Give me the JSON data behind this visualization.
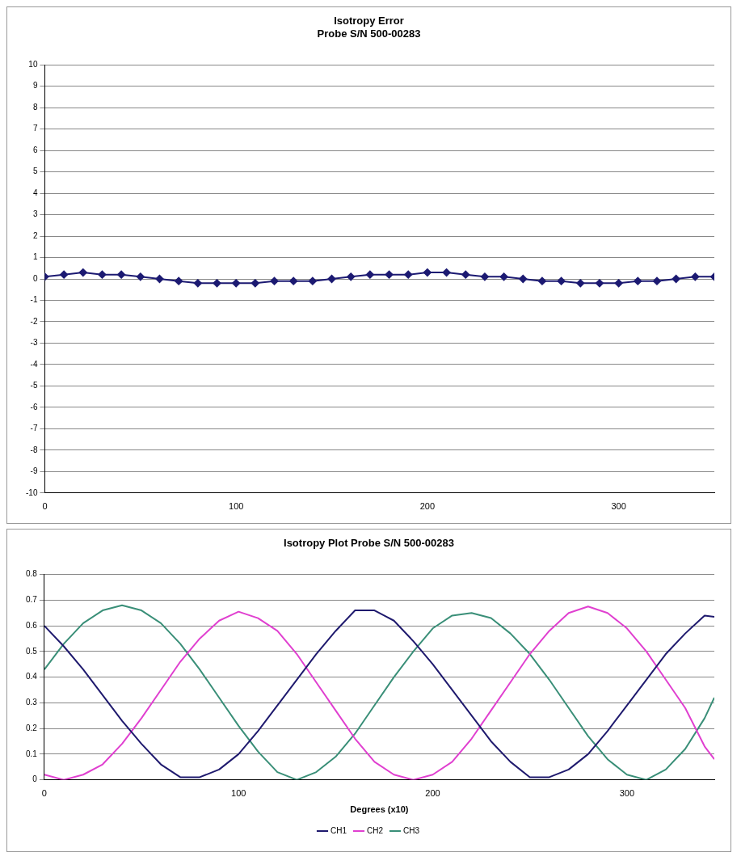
{
  "chart_data": [
    {
      "type": "line",
      "title": "Isotropy Error\nProbe S/N 500-00283",
      "x": [
        0,
        10,
        20,
        30,
        40,
        50,
        60,
        70,
        80,
        90,
        100,
        110,
        120,
        130,
        140,
        150,
        160,
        170,
        180,
        190,
        200,
        210,
        220,
        230,
        240,
        250,
        260,
        270,
        280,
        290,
        300,
        310,
        320,
        330,
        340,
        350
      ],
      "series": [
        {
          "color": "#1c1a72",
          "values": [
            0.1,
            0.2,
            0.3,
            0.2,
            0.2,
            0.1,
            0.0,
            -0.1,
            -0.2,
            -0.2,
            -0.2,
            -0.2,
            -0.1,
            -0.1,
            -0.1,
            0.0,
            0.1,
            0.2,
            0.2,
            0.2,
            0.3,
            0.3,
            0.2,
            0.1,
            0.1,
            0.0,
            -0.1,
            -0.1,
            -0.2,
            -0.2,
            -0.2,
            -0.1,
            -0.1,
            0.0,
            0.1,
            0.1
          ]
        }
      ],
      "xlim": [
        0,
        350
      ],
      "xticks": [
        0,
        100,
        200,
        300
      ],
      "ylim": [
        -10,
        10
      ],
      "yticks": [
        -10,
        -9,
        -8,
        -7,
        -6,
        -5,
        -4,
        -3,
        -2,
        -1,
        0,
        1,
        2,
        3,
        4,
        5,
        6,
        7,
        8,
        9,
        10
      ],
      "grid": "y",
      "legend": false,
      "marker": "diamond",
      "line_style": "solid"
    },
    {
      "type": "line",
      "title": "Isotropy Plot Probe S/N 500-00283",
      "xlabel": "Degrees (x10)",
      "x": [
        0,
        10,
        20,
        30,
        40,
        50,
        60,
        70,
        80,
        90,
        100,
        110,
        120,
        130,
        140,
        150,
        160,
        170,
        180,
        190,
        200,
        210,
        220,
        230,
        240,
        250,
        260,
        270,
        280,
        290,
        300,
        310,
        320,
        330,
        340,
        345
      ],
      "series": [
        {
          "name": "CH1",
          "color": "#1f1a6e",
          "values": [
            0.6,
            0.52,
            0.43,
            0.33,
            0.23,
            0.14,
            0.06,
            0.01,
            0.01,
            0.04,
            0.1,
            0.19,
            0.29,
            0.39,
            0.49,
            0.58,
            0.66,
            0.66,
            0.62,
            0.54,
            0.45,
            0.35,
            0.25,
            0.15,
            0.07,
            0.01,
            0.01,
            0.04,
            0.1,
            0.19,
            0.29,
            0.39,
            0.49,
            0.57,
            0.64,
            0.635
          ]
        },
        {
          "name": "CH2",
          "color": "#e040d0",
          "values": [
            0.02,
            0.0,
            0.02,
            0.06,
            0.14,
            0.24,
            0.35,
            0.46,
            0.55,
            0.62,
            0.655,
            0.63,
            0.58,
            0.49,
            0.38,
            0.27,
            0.16,
            0.07,
            0.02,
            0.0,
            0.02,
            0.07,
            0.16,
            0.27,
            0.38,
            0.49,
            0.58,
            0.65,
            0.675,
            0.65,
            0.59,
            0.5,
            0.39,
            0.28,
            0.13,
            0.08
          ]
        },
        {
          "name": "CH3",
          "color": "#3a8f78",
          "values": [
            0.43,
            0.53,
            0.61,
            0.66,
            0.68,
            0.66,
            0.61,
            0.53,
            0.43,
            0.32,
            0.21,
            0.11,
            0.03,
            0.0,
            0.03,
            0.09,
            0.18,
            0.29,
            0.4,
            0.5,
            0.59,
            0.64,
            0.65,
            0.63,
            0.57,
            0.49,
            0.39,
            0.28,
            0.17,
            0.08,
            0.02,
            0.0,
            0.04,
            0.12,
            0.24,
            0.32
          ]
        }
      ],
      "xlim": [
        0,
        345
      ],
      "xticks": [
        0,
        100,
        200,
        300
      ],
      "ylim": [
        0,
        0.8
      ],
      "yticks": [
        0,
        0.1,
        0.2,
        0.3,
        0.4,
        0.5,
        0.6,
        0.7,
        0.8
      ],
      "grid": "y",
      "legend": "bottom",
      "marker": "none",
      "line_style": "solid"
    }
  ]
}
